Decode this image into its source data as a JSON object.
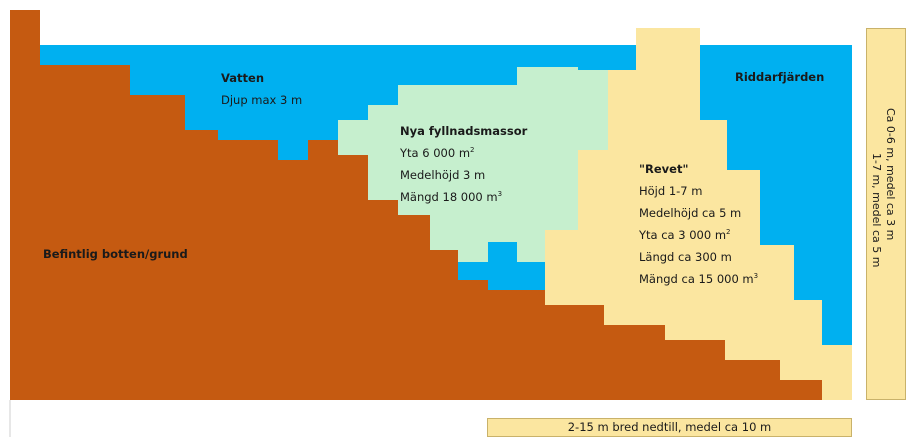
{
  "colors": {
    "existing_bottom": "#c55a11",
    "water": "#00b0f0",
    "new_fill": "#c6efce",
    "reef": "#fbe6a0"
  },
  "labels": {
    "water": {
      "title": "Vatten",
      "line1": "Djup max 3 m"
    },
    "bay": {
      "title": "Riddarfjärden"
    },
    "new_fill": {
      "title": "Nya fyllnadsmassor",
      "area_prefix": "Yta 6 000 m",
      "area_sup": "2",
      "height": "Medelhöjd 3 m",
      "volume_prefix": "Mängd 18 000 m",
      "volume_sup": "3"
    },
    "reef": {
      "title": "\"Revet\"",
      "height": "Höjd 1-7 m",
      "avg_height": "Medelhöjd ca 5 m",
      "area_prefix": "Yta ca 3 000 m",
      "area_sup": "2",
      "length": "Längd ca 300 m",
      "volume_prefix": "Mängd ca 15 000 m",
      "volume_sup": "3"
    },
    "existing_bottom": {
      "title": "Befintlig botten/grund"
    },
    "right_vertical": {
      "line1": "Ca 0-6 m, medel ca 3 m",
      "line2": "1-7 m, medel ca 5 m"
    },
    "bottom_width": {
      "text": "2-15 m bred nedtill, medel ca 10 m"
    }
  }
}
